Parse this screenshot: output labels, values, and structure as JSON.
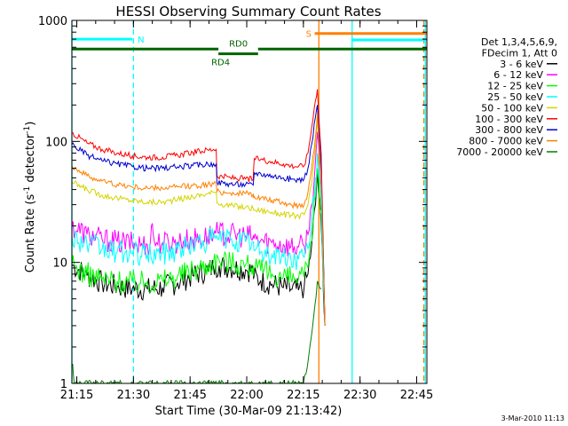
{
  "chart_data": {
    "type": "line",
    "title": "HESSI Observing Summary Count Rates",
    "xlabel": "Start Time (30-Mar-09 21:13:42)",
    "ylabel_main": "Count Rate (s",
    "ylabel_sup1": "-1",
    "ylabel_mid": " detector",
    "ylabel_sup2": "-1",
    "ylabel_end": ")",
    "y_scale": "log",
    "ylim": [
      1,
      1000
    ],
    "x_unit": "minutes since 21:13:42",
    "xlim": [
      0,
      94
    ],
    "x_ticks": [
      {
        "label": "21:15",
        "x": 1.3
      },
      {
        "label": "21:30",
        "x": 16.3
      },
      {
        "label": "21:45",
        "x": 31.3
      },
      {
        "label": "22:00",
        "x": 46.3
      },
      {
        "label": "22:15",
        "x": 61.3
      },
      {
        "label": "22:30",
        "x": 76.3
      },
      {
        "label": "22:45",
        "x": 91.3
      }
    ],
    "y_ticks": [
      {
        "label": "1",
        "y": 1
      },
      {
        "label": "10",
        "y": 10
      },
      {
        "label": "100",
        "y": 100
      },
      {
        "label": "1000",
        "y": 1000
      }
    ],
    "legend_header": [
      "Det 1,3,4,5,6,9,",
      "FDecim 1, Att 0"
    ],
    "legend_position": "right",
    "series": [
      {
        "name": "3 - 6 keV",
        "color": "#000000",
        "points": [
          [
            0,
            9.6
          ],
          [
            4,
            7.8
          ],
          [
            8,
            6.8
          ],
          [
            12,
            6.3
          ],
          [
            16,
            6.1
          ],
          [
            20,
            6.0
          ],
          [
            24,
            6.2
          ],
          [
            28,
            6.8
          ],
          [
            32,
            7.8
          ],
          [
            36,
            8.6
          ],
          [
            37.5,
            9.1
          ],
          [
            38,
            9.3
          ],
          [
            39,
            9.4
          ],
          [
            42,
            9.1
          ],
          [
            46,
            8.7
          ],
          [
            48,
            8.5
          ],
          [
            48.2,
            7.5
          ],
          [
            50,
            7.1
          ],
          [
            53,
            6.6
          ],
          [
            56,
            6.2
          ],
          [
            58,
            6.0
          ],
          [
            60,
            5.9
          ],
          [
            61.5,
            6.2
          ],
          [
            62.5,
            8
          ],
          [
            63.5,
            14
          ],
          [
            64.5,
            30
          ],
          [
            65,
            55
          ],
          [
            66,
            20
          ],
          [
            67,
            3
          ]
        ]
      },
      {
        "name": "6 - 12 keV",
        "color": "#ff00ff",
        "points": [
          [
            0,
            20
          ],
          [
            4,
            17
          ],
          [
            8,
            15.5
          ],
          [
            12,
            14.8
          ],
          [
            16,
            14.3
          ],
          [
            20,
            14.0
          ],
          [
            20.8,
            15
          ],
          [
            21.3,
            21
          ],
          [
            21.8,
            15
          ],
          [
            24,
            14.5
          ],
          [
            28,
            14.8
          ],
          [
            32,
            15.5
          ],
          [
            36,
            16.5
          ],
          [
            37.5,
            17
          ],
          [
            39,
            17.4
          ],
          [
            42,
            16.9
          ],
          [
            46,
            16.5
          ],
          [
            48,
            16.3
          ],
          [
            48.2,
            15.6
          ],
          [
            50,
            15.2
          ],
          [
            53,
            14.6
          ],
          [
            56,
            14.0
          ],
          [
            58,
            13.6
          ],
          [
            60,
            13.4
          ],
          [
            61.5,
            13.8
          ],
          [
            62.5,
            17
          ],
          [
            63.5,
            30
          ],
          [
            64.5,
            70
          ],
          [
            65,
            120
          ],
          [
            66,
            40
          ],
          [
            67,
            3
          ]
        ]
      },
      {
        "name": "12 - 25 keV",
        "color": "#00ff00",
        "points": [
          [
            0,
            9.5
          ],
          [
            4,
            8.0
          ],
          [
            8,
            7.3
          ],
          [
            12,
            7.0
          ],
          [
            16,
            6.9
          ],
          [
            20,
            6.9
          ],
          [
            24,
            7.1
          ],
          [
            28,
            7.7
          ],
          [
            32,
            8.7
          ],
          [
            36,
            9.6
          ],
          [
            37.5,
            10.2
          ],
          [
            39,
            10.4
          ],
          [
            42,
            10.1
          ],
          [
            46,
            9.6
          ],
          [
            48,
            9.4
          ],
          [
            48.2,
            8.9
          ],
          [
            50,
            8.5
          ],
          [
            53,
            8.0
          ],
          [
            56,
            7.6
          ],
          [
            58,
            7.4
          ],
          [
            60,
            7.3
          ],
          [
            61.5,
            7.6
          ],
          [
            62.5,
            9
          ],
          [
            63.5,
            15
          ],
          [
            64.5,
            35
          ],
          [
            65,
            60
          ],
          [
            66,
            25
          ],
          [
            67,
            3
          ]
        ]
      },
      {
        "name": "25 - 50 keV",
        "color": "#00ffff",
        "points": [
          [
            0,
            16.5
          ],
          [
            4,
            14.2
          ],
          [
            8,
            12.8
          ],
          [
            12,
            12.2
          ],
          [
            16,
            11.8
          ],
          [
            20,
            11.6
          ],
          [
            24,
            11.9
          ],
          [
            28,
            12.8
          ],
          [
            32,
            14.0
          ],
          [
            36,
            15.2
          ],
          [
            37.5,
            15.8
          ],
          [
            39,
            16.0
          ],
          [
            42,
            15.4
          ],
          [
            46,
            14.8
          ],
          [
            48,
            14.6
          ],
          [
            48.2,
            12.6
          ],
          [
            50,
            12.2
          ],
          [
            53,
            11.6
          ],
          [
            56,
            11.0
          ],
          [
            58,
            10.7
          ],
          [
            60,
            10.6
          ],
          [
            61.5,
            11.0
          ],
          [
            62.5,
            13
          ],
          [
            63.5,
            22
          ],
          [
            64.5,
            50
          ],
          [
            65,
            80
          ],
          [
            66,
            30
          ],
          [
            67,
            3
          ]
        ]
      },
      {
        "name": "50 - 100 keV",
        "color": "#d4d400",
        "points": [
          [
            0,
            46
          ],
          [
            4,
            40
          ],
          [
            8,
            36
          ],
          [
            12,
            34
          ],
          [
            16,
            32.5
          ],
          [
            20,
            31.5
          ],
          [
            24,
            31.5
          ],
          [
            28,
            33
          ],
          [
            32,
            35
          ],
          [
            36,
            37
          ],
          [
            37.5,
            38
          ],
          [
            38.2,
            38
          ],
          [
            38.4,
            31
          ],
          [
            42,
            29.5
          ],
          [
            46,
            28.5
          ],
          [
            48,
            28
          ],
          [
            48.4,
            27
          ],
          [
            50,
            27
          ],
          [
            53,
            26
          ],
          [
            56,
            25
          ],
          [
            58,
            24.5
          ],
          [
            60,
            24.2
          ],
          [
            61.5,
            24.8
          ],
          [
            62.5,
            30
          ],
          [
            63.5,
            45
          ],
          [
            64.5,
            90
          ],
          [
            65,
            150
          ],
          [
            66,
            60
          ],
          [
            67,
            3
          ]
        ]
      },
      {
        "name": "100 - 300 keV",
        "color": "#ff0000",
        "points": [
          [
            0,
            118
          ],
          [
            4,
            97
          ],
          [
            8,
            86
          ],
          [
            12,
            80
          ],
          [
            16,
            76
          ],
          [
            20,
            74
          ],
          [
            24,
            74
          ],
          [
            28,
            77
          ],
          [
            32,
            81
          ],
          [
            36,
            85
          ],
          [
            37.5,
            86
          ],
          [
            38.2,
            86
          ],
          [
            38.4,
            52
          ],
          [
            42,
            50
          ],
          [
            46,
            49
          ],
          [
            48,
            48.5
          ],
          [
            48.3,
            72
          ],
          [
            50,
            71
          ],
          [
            53,
            68
          ],
          [
            56,
            65
          ],
          [
            58,
            63
          ],
          [
            60,
            62
          ],
          [
            61.5,
            63
          ],
          [
            62.5,
            80
          ],
          [
            63.5,
            130
          ],
          [
            64.5,
            220
          ],
          [
            65,
            270
          ],
          [
            66,
            80
          ],
          [
            67,
            3
          ]
        ]
      },
      {
        "name": "300 - 800 keV",
        "color": "#0000cc",
        "points": [
          [
            0,
            95
          ],
          [
            4,
            77
          ],
          [
            8,
            69
          ],
          [
            12,
            65
          ],
          [
            16,
            62
          ],
          [
            20,
            60
          ],
          [
            24,
            60
          ],
          [
            28,
            61.5
          ],
          [
            32,
            63
          ],
          [
            36,
            65
          ],
          [
            37.5,
            65.5
          ],
          [
            38.2,
            65
          ],
          [
            38.4,
            46
          ],
          [
            42,
            44.5
          ],
          [
            46,
            44
          ],
          [
            48,
            43.5
          ],
          [
            48.3,
            55
          ],
          [
            50,
            54
          ],
          [
            53,
            52
          ],
          [
            56,
            50
          ],
          [
            58,
            48.5
          ],
          [
            60,
            48
          ],
          [
            61.5,
            49
          ],
          [
            62.5,
            60
          ],
          [
            63.5,
            95
          ],
          [
            64.5,
            160
          ],
          [
            65,
            200
          ],
          [
            66,
            60
          ],
          [
            67,
            3
          ]
        ]
      },
      {
        "name": "800 - 7000 keV",
        "color": "#ff8000",
        "points": [
          [
            0,
            63
          ],
          [
            4,
            52
          ],
          [
            8,
            47
          ],
          [
            12,
            44
          ],
          [
            16,
            42
          ],
          [
            20,
            41
          ],
          [
            24,
            41
          ],
          [
            28,
            42
          ],
          [
            32,
            43
          ],
          [
            36,
            44
          ],
          [
            37.5,
            44.5
          ],
          [
            38.2,
            44.5
          ],
          [
            38.4,
            38.5
          ],
          [
            42,
            37.5
          ],
          [
            46,
            37
          ],
          [
            48,
            36.5
          ],
          [
            48.3,
            35
          ],
          [
            50,
            34
          ],
          [
            53,
            32.5
          ],
          [
            56,
            31
          ],
          [
            58,
            30
          ],
          [
            60,
            29.5
          ],
          [
            61.5,
            30
          ],
          [
            62.5,
            38
          ],
          [
            63.5,
            60
          ],
          [
            64.5,
            110
          ],
          [
            65,
            170
          ],
          [
            66,
            50
          ],
          [
            67,
            3
          ]
        ]
      },
      {
        "name": "7000 - 20000 keV",
        "color": "#008000",
        "points": [
          [
            0.2,
            1.45
          ],
          [
            0.6,
            1.0
          ],
          [
            61,
            1.0
          ],
          [
            62,
            1.2
          ],
          [
            63,
            2.0
          ],
          [
            64,
            3.5
          ],
          [
            65,
            7
          ],
          [
            66,
            6
          ]
        ]
      }
    ],
    "attenuator_states": [
      {
        "label": "N",
        "color": "#00ffff",
        "x_start": 0,
        "x_end": 16,
        "y": 700
      },
      {
        "label": "S",
        "color": "#ff8000",
        "x_start": 64.3,
        "x_end": 94,
        "y": 780
      },
      {
        "label": "",
        "color": "#00ffff",
        "x_start": 74,
        "x_end": 94,
        "y": 690
      }
    ],
    "rd0_label": "RD0",
    "rd4_label": "RD4",
    "vertical_markers": [
      {
        "x": 0,
        "color": "#00ffff",
        "style": "solid"
      },
      {
        "x": 16.3,
        "color": "#00ffff",
        "style": "dashed"
      },
      {
        "x": 65.4,
        "color": "#ff8000",
        "style": "solid"
      },
      {
        "x": 74.2,
        "color": "#00ffff",
        "style": "solid"
      },
      {
        "x": 93.2,
        "color": "#ff8000",
        "style": "dashed"
      },
      {
        "x": 93.6,
        "color": "#00ffff",
        "style": "solid"
      }
    ],
    "timestamp": "3-Mar-2010 11:13"
  }
}
